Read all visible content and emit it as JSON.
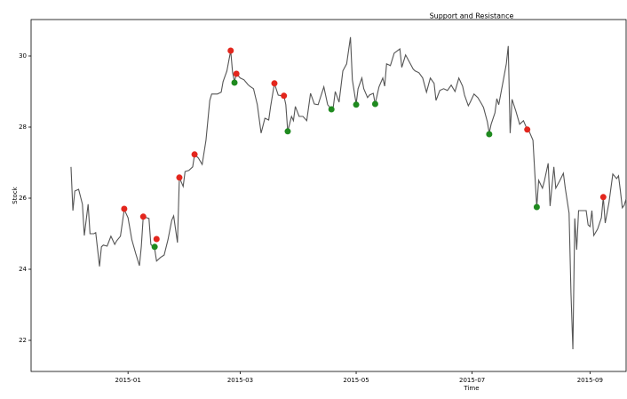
{
  "chart_data": {
    "type": "line",
    "title": "Support and Resistance",
    "x_label": "Time",
    "y_label": "Stock",
    "xlim": [
      "2014-11-11",
      "2015-09-20"
    ],
    "xticks": [
      {
        "value": "2015-01-01",
        "label": "2015-01"
      },
      {
        "value": "2015-03-01",
        "label": "2015-03"
      },
      {
        "value": "2015-05-01",
        "label": "2015-05"
      },
      {
        "value": "2015-07-01",
        "label": "2015-07"
      },
      {
        "value": "2015-09-01",
        "label": "2015-09"
      }
    ],
    "ylim": [
      21.125,
      31.025
    ],
    "yticks": [
      22,
      24,
      26,
      28,
      30
    ],
    "x": [
      "2014-12-02",
      "2014-12-03",
      "2014-12-04",
      "2014-12-06",
      "2014-12-08",
      "2014-12-09",
      "2014-12-11",
      "2014-12-12",
      "2014-12-14",
      "2014-12-15",
      "2014-12-17",
      "2014-12-18",
      "2014-12-19",
      "2014-12-21",
      "2014-12-23",
      "2014-12-25",
      "2014-12-26",
      "2014-12-28",
      "2014-12-30",
      "2015-01-01",
      "2015-01-03",
      "2015-01-05",
      "2015-01-07",
      "2015-01-08",
      "2015-01-09",
      "2015-01-12",
      "2015-01-13",
      "2015-01-15",
      "2015-01-16",
      "2015-01-18",
      "2015-01-20",
      "2015-01-22",
      "2015-01-24",
      "2015-01-25",
      "2015-01-27",
      "2015-01-28",
      "2015-01-30",
      "2015-01-31",
      "2015-02-02",
      "2015-02-04",
      "2015-02-05",
      "2015-02-07",
      "2015-02-09",
      "2015-02-11",
      "2015-02-13",
      "2015-02-14",
      "2015-02-17",
      "2015-02-19",
      "2015-02-20",
      "2015-02-22",
      "2015-02-24",
      "2015-02-25",
      "2015-02-26",
      "2015-02-27",
      "2015-03-01",
      "2015-03-03",
      "2015-03-05",
      "2015-03-06",
      "2015-03-08",
      "2015-03-10",
      "2015-03-12",
      "2015-03-14",
      "2015-03-16",
      "2015-03-17",
      "2015-03-19",
      "2015-03-21",
      "2015-03-23",
      "2015-03-24",
      "2015-03-25",
      "2015-03-26",
      "2015-03-28",
      "2015-03-29",
      "2015-03-30",
      "2015-04-01",
      "2015-04-03",
      "2015-04-05",
      "2015-04-07",
      "2015-04-09",
      "2015-04-11",
      "2015-04-12",
      "2015-04-14",
      "2015-04-16",
      "2015-04-18",
      "2015-04-19",
      "2015-04-20",
      "2015-04-22",
      "2015-04-24",
      "2015-04-26",
      "2015-04-28",
      "2015-04-29",
      "2015-05-01",
      "2015-05-02",
      "2015-05-04",
      "2015-05-05",
      "2015-05-07",
      "2015-05-08",
      "2015-05-10",
      "2015-05-11",
      "2015-05-13",
      "2015-05-15",
      "2015-05-16",
      "2015-05-17",
      "2015-05-19",
      "2015-05-21",
      "2015-05-24",
      "2015-05-25",
      "2015-05-27",
      "2015-05-29",
      "2015-05-31",
      "2015-06-01",
      "2015-06-03",
      "2015-06-05",
      "2015-06-07",
      "2015-06-09",
      "2015-06-11",
      "2015-06-12",
      "2015-06-14",
      "2015-06-16",
      "2015-06-18",
      "2015-06-20",
      "2015-06-22",
      "2015-06-24",
      "2015-06-26",
      "2015-06-27",
      "2015-06-29",
      "2015-06-30",
      "2015-07-02",
      "2015-07-04",
      "2015-07-06",
      "2015-07-07",
      "2015-07-09",
      "2015-07-10",
      "2015-07-11",
      "2015-07-13",
      "2015-07-14",
      "2015-07-15",
      "2015-07-17",
      "2015-07-19",
      "2015-07-20",
      "2015-07-21",
      "2015-07-22",
      "2015-07-24",
      "2015-07-26",
      "2015-07-28",
      "2015-07-30",
      "2015-07-31",
      "2015-08-02",
      "2015-08-03",
      "2015-08-04",
      "2015-08-05",
      "2015-08-07",
      "2015-08-08",
      "2015-08-10",
      "2015-08-11",
      "2015-08-13",
      "2015-08-14",
      "2015-08-16",
      "2015-08-18",
      "2015-08-19",
      "2015-08-21",
      "2015-08-22",
      "2015-08-23",
      "2015-08-24",
      "2015-08-25",
      "2015-08-26",
      "2015-08-28",
      "2015-08-30",
      "2015-08-31",
      "2015-09-01",
      "2015-09-02",
      "2015-09-03",
      "2015-09-05",
      "2015-09-07",
      "2015-09-08",
      "2015-09-09",
      "2015-09-11",
      "2015-09-12",
      "2015-09-13",
      "2015-09-15",
      "2015-09-16",
      "2015-09-17",
      "2015-09-18",
      "2015-09-19",
      "2015-09-20"
    ],
    "series": [
      {
        "color": "#555555",
        "values": [
          26.88,
          25.65,
          26.2,
          26.25,
          25.83,
          24.95,
          25.83,
          25.0,
          25.0,
          25.03,
          24.08,
          24.63,
          24.68,
          24.65,
          24.93,
          24.7,
          24.8,
          24.93,
          25.68,
          25.45,
          24.83,
          24.45,
          24.1,
          24.65,
          25.48,
          25.43,
          24.7,
          24.58,
          24.23,
          24.33,
          24.4,
          24.83,
          25.38,
          25.5,
          24.75,
          26.58,
          26.33,
          26.75,
          26.78,
          26.88,
          27.23,
          27.13,
          26.95,
          27.63,
          28.75,
          28.93,
          28.93,
          28.98,
          29.28,
          29.58,
          30.15,
          29.53,
          29.28,
          29.5,
          29.38,
          29.33,
          29.2,
          29.15,
          29.08,
          28.63,
          27.83,
          28.25,
          28.2,
          28.58,
          29.23,
          28.9,
          28.88,
          28.88,
          28.63,
          27.88,
          28.3,
          28.18,
          28.58,
          28.3,
          28.3,
          28.18,
          28.95,
          28.65,
          28.63,
          28.8,
          29.13,
          28.63,
          28.5,
          28.58,
          29.0,
          28.7,
          29.58,
          29.78,
          30.53,
          29.33,
          28.65,
          29.08,
          29.38,
          29.08,
          28.83,
          28.9,
          28.95,
          28.65,
          29.13,
          29.38,
          29.15,
          29.78,
          29.73,
          30.08,
          30.2,
          29.68,
          30.03,
          29.83,
          29.63,
          29.58,
          29.53,
          29.38,
          28.98,
          29.38,
          29.23,
          28.75,
          29.03,
          29.08,
          29.03,
          29.18,
          29.0,
          29.38,
          29.15,
          28.9,
          28.6,
          28.7,
          28.93,
          28.83,
          28.65,
          28.55,
          28.15,
          27.83,
          28.08,
          28.4,
          28.8,
          28.63,
          29.2,
          29.78,
          30.28,
          27.83,
          28.78,
          28.45,
          28.08,
          28.18,
          27.93,
          27.88,
          27.63,
          26.68,
          25.75,
          26.5,
          26.28,
          26.48,
          26.98,
          25.78,
          26.88,
          26.28,
          26.48,
          26.7,
          26.28,
          25.58,
          23.33,
          21.75,
          25.43,
          24.55,
          25.65,
          25.65,
          25.65,
          25.25,
          25.2,
          25.65,
          24.95,
          25.13,
          25.45,
          26.03,
          25.3,
          25.88,
          26.28,
          26.68,
          26.55,
          26.63,
          26.2,
          25.73,
          25.8,
          25.98
        ]
      },
      {
        "color": "#e3261d",
        "marker": "o",
        "x": [
          "2014-12-30",
          "2015-01-09",
          "2015-01-16",
          "2015-01-28",
          "2015-02-05",
          "2015-02-24",
          "2015-02-27",
          "2015-03-19",
          "2015-03-24",
          "2015-07-30",
          "2015-09-08"
        ],
        "values": [
          25.7,
          25.48,
          24.85,
          26.58,
          27.23,
          30.15,
          29.5,
          29.23,
          28.88,
          27.93,
          26.03
        ]
      },
      {
        "color": "#1f8a1f",
        "marker": "o",
        "x": [
          "2015-01-15",
          "2015-02-26",
          "2015-03-26",
          "2015-04-18",
          "2015-05-01",
          "2015-05-11",
          "2015-07-10",
          "2015-08-04"
        ],
        "values": [
          24.63,
          29.25,
          27.88,
          28.5,
          28.63,
          28.65,
          27.8,
          25.75
        ]
      }
    ]
  }
}
